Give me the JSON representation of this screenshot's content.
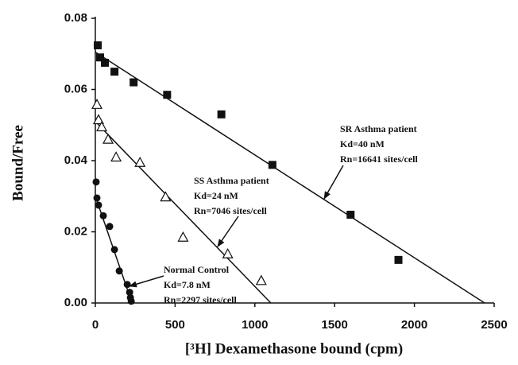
{
  "chart_data": {
    "type": "scatter",
    "xlabel": "[³H] Dexamethasone bound  (cpm)",
    "ylabel": "Bound/Free",
    "xlim": [
      0,
      2500
    ],
    "ylim": [
      0,
      0.08
    ],
    "xticks": [
      0,
      500,
      1000,
      1500,
      2000,
      2500
    ],
    "yticks": [
      {
        "value": 0,
        "label": "0.00"
      },
      {
        "value": 0.02,
        "label": "0.02"
      },
      {
        "value": 0.04,
        "label": "0.04"
      },
      {
        "value": 0.06,
        "label": "0.06"
      },
      {
        "value": 0.08,
        "label": "0.08"
      }
    ],
    "series": [
      {
        "marker": "square",
        "color": "#111111",
        "x": [
          15,
          30,
          60,
          120,
          240,
          450,
          790,
          1110,
          1600,
          1900
        ],
        "values": [
          0.0724,
          0.069,
          0.0675,
          0.065,
          0.062,
          0.0585,
          0.053,
          0.0388,
          0.0248,
          0.0121
        ],
        "fit": {
          "x": [
            0,
            2440
          ],
          "values": [
            0.0705,
            0
          ]
        },
        "annotation": [
          "SR Asthma patient",
          "Kd=40 nM",
          "Rn=16641 sites/cell"
        ]
      },
      {
        "marker": "triangle",
        "color": "#111111",
        "x": [
          10,
          20,
          40,
          80,
          130,
          280,
          440,
          550,
          830,
          1040
        ],
        "values": [
          0.0558,
          0.0515,
          0.0495,
          0.046,
          0.041,
          0.0395,
          0.0298,
          0.0185,
          0.0138,
          0.0063
        ],
        "fit": {
          "x": [
            0,
            1100
          ],
          "values": [
            0.051,
            0
          ]
        },
        "annotation": [
          "SS Asthma patient",
          "Kd=24 nM",
          "Rn=7046 sites/cell"
        ]
      },
      {
        "marker": "circle",
        "color": "#111111",
        "x": [
          5,
          10,
          20,
          50,
          90,
          120,
          150,
          200,
          215,
          220,
          225
        ],
        "values": [
          0.034,
          0.0295,
          0.0275,
          0.0245,
          0.0215,
          0.015,
          0.009,
          0.0052,
          0.003,
          0.0015,
          0.0005
        ],
        "fit": {
          "x": [
            0,
            230
          ],
          "values": [
            0.03,
            0
          ]
        },
        "annotation": [
          "Normal Control",
          "Kd=7.8  nM",
          "Rn=2297 sites/cell"
        ]
      }
    ]
  }
}
